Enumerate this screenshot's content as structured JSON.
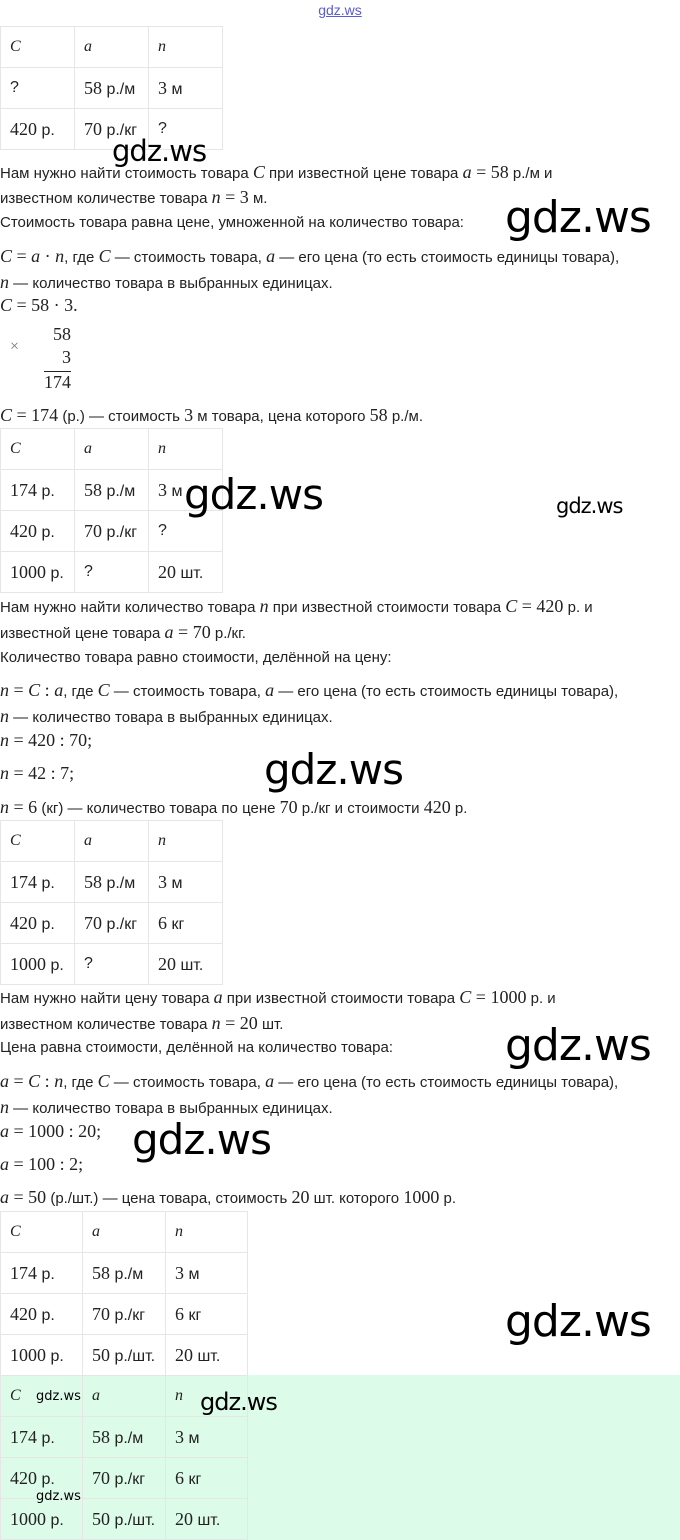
{
  "site_link": "gdz.ws",
  "watermark": "gdz.ws",
  "tables": [
    {
      "header": [
        "C",
        "a",
        "n"
      ],
      "rows": [
        [
          "?",
          "58 р./м",
          "3 м"
        ],
        [
          "420 р.",
          "70 р./кг",
          "?"
        ]
      ]
    },
    {
      "header": [
        "C",
        "a",
        "n"
      ],
      "rows": [
        [
          "174 р.",
          "58 р./м",
          "3 м"
        ],
        [
          "420 р.",
          "70 р./кг",
          "?"
        ],
        [
          "1000 р.",
          "?",
          "20 шт."
        ]
      ]
    },
    {
      "header": [
        "C",
        "a",
        "n"
      ],
      "rows": [
        [
          "174 р.",
          "58 р./м",
          "3 м"
        ],
        [
          "420 р.",
          "70 р./кг",
          "6 кг"
        ],
        [
          "1000 р.",
          "?",
          "20 шт."
        ]
      ]
    },
    {
      "header": [
        "C",
        "a",
        "n"
      ],
      "rows": [
        [
          "174 р.",
          "58 р./м",
          "3 м"
        ],
        [
          "420 р.",
          "70 р./кг",
          "6 кг"
        ],
        [
          "1000 р.",
          "50 р./шт.",
          "20 шт."
        ]
      ]
    },
    {
      "header": [
        "C",
        "a",
        "n"
      ],
      "rows": [
        [
          "174 р.",
          "58 р./м",
          "3 м"
        ],
        [
          "420 р.",
          "70 р./кг",
          "6 кг"
        ],
        [
          "1000 р.",
          "50 р./шт.",
          "20 шт."
        ]
      ]
    }
  ],
  "lines": [
    [
      [
        "Нам нужно найти стоимость товара "
      ],
      [
        "C",
        "mi"
      ],
      [
        " при известной цене товара "
      ],
      [
        "a",
        "mi"
      ],
      [
        " = 58",
        "m"
      ],
      [
        " р./м и"
      ]
    ],
    [
      [
        "известном количестве товара "
      ],
      [
        "n",
        "mi"
      ],
      [
        " = 3",
        "m"
      ],
      [
        " м."
      ]
    ],
    [
      [
        "Стоимость товара равна цене, умноженной на количество товара:"
      ]
    ],
    [
      [
        "C",
        "mi"
      ],
      [
        " = ",
        "m"
      ],
      [
        "a",
        "mi"
      ],
      [
        " · ",
        "m"
      ],
      [
        "n",
        "mi"
      ],
      [
        ", где "
      ],
      [
        "C",
        "mi"
      ],
      [
        " — стоимость товара, "
      ],
      [
        "a",
        "mi"
      ],
      [
        " — его цена (то есть стоимость единицы товара),"
      ]
    ],
    [
      [
        "n",
        "mi"
      ],
      [
        " — количество товара в выбранных единицах."
      ]
    ],
    [
      [
        "C",
        "mi"
      ],
      [
        " = 58 · 3.",
        "m"
      ]
    ],
    [
      [
        "C",
        "mi"
      ],
      [
        " = 174",
        "m"
      ],
      [
        " (р.) — стоимость "
      ],
      [
        "3",
        "m"
      ],
      [
        " м товара, цена которого "
      ],
      [
        "58",
        "m"
      ],
      [
        " р./м."
      ]
    ],
    [
      [
        "Нам нужно найти количество товара "
      ],
      [
        "n",
        "mi"
      ],
      [
        " при известной стоимости товара "
      ],
      [
        "C",
        "mi"
      ],
      [
        " = 420",
        "m"
      ],
      [
        " р. и"
      ]
    ],
    [
      [
        "известной цене товара "
      ],
      [
        "a",
        "mi"
      ],
      [
        " = 70",
        "m"
      ],
      [
        " р./кг."
      ]
    ],
    [
      [
        "Количество товара равно стоимости, делённой на цену:"
      ]
    ],
    [
      [
        "n",
        "mi"
      ],
      [
        " = ",
        "m"
      ],
      [
        "C",
        "mi"
      ],
      [
        " : ",
        "m"
      ],
      [
        "a",
        "mi"
      ],
      [
        ", где "
      ],
      [
        "C",
        "mi"
      ],
      [
        " — стоимость товара, "
      ],
      [
        "a",
        "mi"
      ],
      [
        " — его цена (то есть стоимость единицы товара),"
      ]
    ],
    [
      [
        "n",
        "mi"
      ],
      [
        " — количество товара в выбранных единицах."
      ]
    ],
    [
      [
        "n",
        "mi"
      ],
      [
        " = 420 : 70;",
        "m"
      ]
    ],
    [
      [
        "n",
        "mi"
      ],
      [
        " = 42 : 7;",
        "m"
      ]
    ],
    [
      [
        "n",
        "mi"
      ],
      [
        " = 6",
        "m"
      ],
      [
        " (кг) — количество товара по цене "
      ],
      [
        "70",
        "m"
      ],
      [
        " р./кг и стоимости "
      ],
      [
        "420",
        "m"
      ],
      [
        " р."
      ]
    ],
    [
      [
        "Нам нужно найти цену товара "
      ],
      [
        "a",
        "mi"
      ],
      [
        " при известной стоимости товара "
      ],
      [
        "C",
        "mi"
      ],
      [
        " = 1000",
        "m"
      ],
      [
        " р. и"
      ]
    ],
    [
      [
        "известном количестве товара "
      ],
      [
        "n",
        "mi"
      ],
      [
        " = 20",
        "m"
      ],
      [
        " шт."
      ]
    ],
    [
      [
        "Цена равна стоимости, делённой на количество товара:"
      ]
    ],
    [
      [
        "a",
        "mi"
      ],
      [
        " = ",
        "m"
      ],
      [
        "C",
        "mi"
      ],
      [
        " : ",
        "m"
      ],
      [
        "n",
        "mi"
      ],
      [
        ", где "
      ],
      [
        "C",
        "mi"
      ],
      [
        " — стоимость товара, "
      ],
      [
        "a",
        "mi"
      ],
      [
        " — его цена (то есть стоимость единицы товара),"
      ]
    ],
    [
      [
        "n",
        "mi"
      ],
      [
        " — количество товара в выбранных единицах."
      ]
    ],
    [
      [
        "a",
        "mi"
      ],
      [
        " = 1000 : 20;",
        "m"
      ]
    ],
    [
      [
        "a",
        "mi"
      ],
      [
        " = 100 : 2;",
        "m"
      ]
    ],
    [
      [
        "a",
        "mi"
      ],
      [
        " = 50",
        "m"
      ],
      [
        " (р./шт.) — цена товара, стоимость "
      ],
      [
        "20",
        "m"
      ],
      [
        " шт. которого "
      ],
      [
        "1000",
        "m"
      ],
      [
        " р."
      ]
    ]
  ],
  "multiplication": {
    "sign": "×",
    "factor1": "58",
    "factor2": "3",
    "result": "174"
  }
}
